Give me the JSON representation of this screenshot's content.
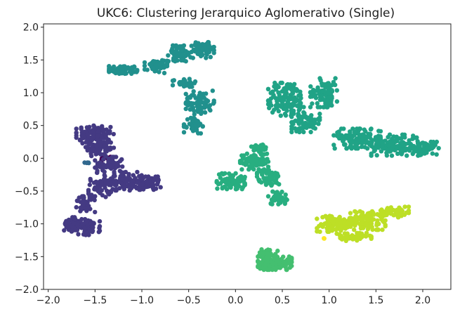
{
  "chart_data": {
    "type": "scatter",
    "title": "UKC6: Clustering Jerarquico Aglomerativo (Single)",
    "xlabel": "",
    "ylabel": "",
    "xlim": [
      -2.05,
      2.3
    ],
    "ylim": [
      -2.0,
      2.05
    ],
    "grid": false,
    "legend": "none",
    "x_ticks": [
      -2.0,
      -1.5,
      -1.0,
      -0.5,
      0.0,
      0.5,
      1.0,
      1.5,
      2.0
    ],
    "x_tick_labels": [
      "−2.0",
      "−1.5",
      "−1.0",
      "−0.5",
      "0.0",
      "0.5",
      "1.0",
      "1.5",
      "2.0"
    ],
    "y_ticks": [
      2.0,
      1.5,
      1.0,
      0.5,
      0.0,
      -0.5,
      -1.0,
      -1.5,
      -2.0
    ],
    "y_tick_labels": [
      "2.0",
      "1.5",
      "1.0",
      "0.5",
      "0.0",
      "−0.5",
      "−1.0",
      "−1.5",
      "−2.0"
    ],
    "colormap": "viridis",
    "clusters": [
      {
        "color": "#440154",
        "blobs": [
          [
            -1.43,
            -0.0,
            0.02,
            0.04,
            6
          ],
          [
            -1.35,
            -0.02,
            0.02,
            0.05,
            6
          ]
        ]
      },
      {
        "color": "#443a83",
        "blobs": [
          [
            -1.5,
            0.35,
            0.2,
            0.16,
            100
          ],
          [
            -1.45,
            0.15,
            0.15,
            0.12,
            60
          ],
          [
            -1.35,
            -0.1,
            0.15,
            0.12,
            60
          ],
          [
            -1.2,
            -0.35,
            0.2,
            0.14,
            100
          ],
          [
            -1.45,
            -0.45,
            0.12,
            0.14,
            50
          ],
          [
            -0.95,
            -0.38,
            0.15,
            0.1,
            60
          ],
          [
            -1.6,
            -0.7,
            0.1,
            0.12,
            40
          ],
          [
            -1.6,
            -1.05,
            0.15,
            0.12,
            70
          ],
          [
            -1.75,
            -1.0,
            0.08,
            0.1,
            40
          ]
        ]
      },
      {
        "color": "#31688e",
        "blobs": [
          [
            -1.58,
            -0.07,
            0.04,
            0.02,
            5
          ]
        ]
      },
      {
        "color": "#21908d",
        "blobs": [
          [
            -1.2,
            1.35,
            0.15,
            0.06,
            60
          ],
          [
            -0.85,
            1.4,
            0.12,
            0.1,
            50
          ],
          [
            -0.6,
            1.6,
            0.12,
            0.12,
            70
          ],
          [
            -0.35,
            1.65,
            0.12,
            0.12,
            60
          ],
          [
            -0.55,
            1.15,
            0.12,
            0.06,
            40
          ],
          [
            -0.38,
            0.85,
            0.15,
            0.18,
            70
          ],
          [
            -0.45,
            0.5,
            0.1,
            0.12,
            40
          ]
        ]
      },
      {
        "color": "#20a386",
        "blobs": [
          [
            0.55,
            0.9,
            0.2,
            0.25,
            140
          ],
          [
            0.95,
            1.0,
            0.15,
            0.22,
            90
          ],
          [
            0.75,
            0.55,
            0.15,
            0.15,
            70
          ],
          [
            1.3,
            0.3,
            0.25,
            0.15,
            120
          ],
          [
            1.7,
            0.2,
            0.25,
            0.16,
            140
          ],
          [
            2.05,
            0.15,
            0.12,
            0.1,
            50
          ]
        ]
      },
      {
        "color": "#28ae80",
        "blobs": [
          [
            0.2,
            -0.05,
            0.15,
            0.12,
            70
          ],
          [
            -0.05,
            -0.35,
            0.15,
            0.12,
            80
          ],
          [
            0.35,
            -0.3,
            0.12,
            0.12,
            50
          ],
          [
            0.45,
            -0.6,
            0.1,
            0.1,
            40
          ],
          [
            0.25,
            0.15,
            0.08,
            0.08,
            30
          ]
        ]
      },
      {
        "color": "#44bf70",
        "blobs": [
          [
            0.42,
            -1.6,
            0.18,
            0.1,
            140
          ],
          [
            0.35,
            -1.45,
            0.1,
            0.06,
            40
          ]
        ]
      },
      {
        "color": "#bddf26",
        "blobs": [
          [
            1.05,
            -1.0,
            0.18,
            0.12,
            100
          ],
          [
            1.4,
            -0.95,
            0.2,
            0.14,
            110
          ],
          [
            1.7,
            -0.82,
            0.15,
            0.08,
            60
          ],
          [
            1.25,
            -1.2,
            0.2,
            0.06,
            50
          ]
        ]
      },
      {
        "color": "#fde725",
        "blobs": [
          [
            0.94,
            -1.22,
            0.02,
            0.02,
            3
          ]
        ]
      }
    ]
  }
}
